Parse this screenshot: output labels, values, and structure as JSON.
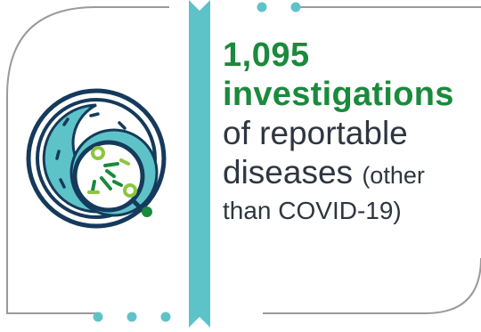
{
  "stat": {
    "number": "1,095",
    "emphasis": "investigations",
    "line_1": "of reportable",
    "line_2_main": "diseases",
    "line_2_aside": "(other",
    "line_3": "than COVID-19)"
  },
  "colors": {
    "accent_green": "#1a8a3c",
    "accent_teal": "#5ec3c9",
    "outline_navy": "#153a5b",
    "frame_gray": "#9a9a9a",
    "text_dark": "#2e3640"
  },
  "icon": "petri-dish-bacteria-icon"
}
